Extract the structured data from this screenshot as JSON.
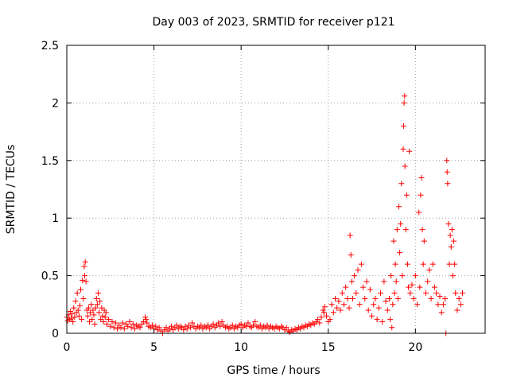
{
  "chart_data": {
    "type": "scatter",
    "title": "Day 003 of 2023, SRMTID for receiver p121",
    "xlabel": "GPS time / hours",
    "ylabel": "SRMTID / TECUs",
    "xlim": [
      0,
      24
    ],
    "ylim": [
      0,
      2.5
    ],
    "x_ticks": [
      0,
      5,
      10,
      15,
      20
    ],
    "y_ticks": [
      0,
      0.5,
      1,
      1.5,
      2,
      2.5
    ],
    "x_tick_labels": [
      "0",
      "5",
      "10",
      "15",
      "20"
    ],
    "y_tick_labels": [
      "0",
      "0.5",
      "1",
      "1.5",
      "2",
      "2.5"
    ],
    "grid": true,
    "marker": "+",
    "color": "#ff0000",
    "series": [
      {
        "name": "SRMTID",
        "points": [
          [
            0.0,
            0.14
          ],
          [
            0.05,
            0.11
          ],
          [
            0.1,
            0.16
          ],
          [
            0.15,
            0.12
          ],
          [
            0.2,
            0.19
          ],
          [
            0.25,
            0.13
          ],
          [
            0.3,
            0.17
          ],
          [
            0.35,
            0.1
          ],
          [
            0.4,
            0.22
          ],
          [
            0.45,
            0.14
          ],
          [
            0.5,
            0.28
          ],
          [
            0.55,
            0.18
          ],
          [
            0.6,
            0.35
          ],
          [
            0.65,
            0.2
          ],
          [
            0.7,
            0.15
          ],
          [
            0.75,
            0.24
          ],
          [
            0.8,
            0.38
          ],
          [
            0.85,
            0.12
          ],
          [
            0.9,
            0.46
          ],
          [
            0.95,
            0.3
          ],
          [
            1.0,
            0.58
          ],
          [
            1.03,
            0.5
          ],
          [
            1.06,
            0.62
          ],
          [
            1.1,
            0.45
          ],
          [
            1.15,
            0.2
          ],
          [
            1.2,
            0.15
          ],
          [
            1.25,
            0.22
          ],
          [
            1.3,
            0.1
          ],
          [
            1.35,
            0.18
          ],
          [
            1.4,
            0.25
          ],
          [
            1.45,
            0.12
          ],
          [
            1.5,
            0.2
          ],
          [
            1.55,
            0.16
          ],
          [
            1.6,
            0.08
          ],
          [
            1.65,
            0.22
          ],
          [
            1.7,
            0.3
          ],
          [
            1.75,
            0.25
          ],
          [
            1.8,
            0.35
          ],
          [
            1.85,
            0.18
          ],
          [
            1.9,
            0.28
          ],
          [
            1.95,
            0.12
          ],
          [
            2.0,
            0.22
          ],
          [
            2.05,
            0.15
          ],
          [
            2.1,
            0.1
          ],
          [
            2.15,
            0.2
          ],
          [
            2.2,
            0.14
          ],
          [
            2.25,
            0.18
          ],
          [
            2.3,
            0.08
          ],
          [
            2.4,
            0.12
          ],
          [
            2.5,
            0.06
          ],
          [
            2.6,
            0.1
          ],
          [
            2.7,
            0.05
          ],
          [
            2.8,
            0.09
          ],
          [
            2.9,
            0.04
          ],
          [
            3.0,
            0.07
          ],
          [
            3.1,
            0.05
          ],
          [
            3.2,
            0.09
          ],
          [
            3.3,
            0.04
          ],
          [
            3.4,
            0.08
          ],
          [
            3.5,
            0.06
          ],
          [
            3.6,
            0.1
          ],
          [
            3.7,
            0.05
          ],
          [
            3.8,
            0.08
          ],
          [
            3.9,
            0.04
          ],
          [
            4.0,
            0.07
          ],
          [
            4.1,
            0.06
          ],
          [
            4.2,
            0.05
          ],
          [
            4.3,
            0.08
          ],
          [
            4.4,
            0.1
          ],
          [
            4.5,
            0.14
          ],
          [
            4.55,
            0.12
          ],
          [
            4.6,
            0.09
          ],
          [
            4.7,
            0.06
          ],
          [
            4.8,
            0.05
          ],
          [
            4.9,
            0.07
          ],
          [
            5.0,
            0.04
          ],
          [
            5.1,
            0.06
          ],
          [
            5.2,
            0.03
          ],
          [
            5.3,
            0.05
          ],
          [
            5.4,
            0.02
          ],
          [
            5.5,
            0.0
          ],
          [
            5.6,
            0.03
          ],
          [
            5.7,
            0.05
          ],
          [
            5.8,
            0.02
          ],
          [
            5.9,
            0.04
          ],
          [
            6.0,
            0.06
          ],
          [
            6.1,
            0.03
          ],
          [
            6.2,
            0.05
          ],
          [
            6.3,
            0.07
          ],
          [
            6.4,
            0.04
          ],
          [
            6.5,
            0.06
          ],
          [
            6.6,
            0.05
          ],
          [
            6.7,
            0.03
          ],
          [
            6.8,
            0.06
          ],
          [
            6.9,
            0.04
          ],
          [
            7.0,
            0.07
          ],
          [
            7.1,
            0.05
          ],
          [
            7.2,
            0.09
          ],
          [
            7.3,
            0.06
          ],
          [
            7.4,
            0.04
          ],
          [
            7.5,
            0.06
          ],
          [
            7.6,
            0.05
          ],
          [
            7.7,
            0.07
          ],
          [
            7.8,
            0.04
          ],
          [
            7.9,
            0.06
          ],
          [
            8.0,
            0.05
          ],
          [
            8.1,
            0.07
          ],
          [
            8.2,
            0.04
          ],
          [
            8.3,
            0.06
          ],
          [
            8.4,
            0.08
          ],
          [
            8.5,
            0.05
          ],
          [
            8.6,
            0.07
          ],
          [
            8.7,
            0.09
          ],
          [
            8.8,
            0.06
          ],
          [
            8.9,
            0.1
          ],
          [
            9.0,
            0.07
          ],
          [
            9.1,
            0.05
          ],
          [
            9.2,
            0.06
          ],
          [
            9.3,
            0.04
          ],
          [
            9.4,
            0.05
          ],
          [
            9.5,
            0.07
          ],
          [
            9.6,
            0.04
          ],
          [
            9.7,
            0.06
          ],
          [
            9.8,
            0.05
          ],
          [
            9.9,
            0.07
          ],
          [
            10.0,
            0.08
          ],
          [
            10.1,
            0.05
          ],
          [
            10.2,
            0.07
          ],
          [
            10.3,
            0.06
          ],
          [
            10.4,
            0.09
          ],
          [
            10.5,
            0.06
          ],
          [
            10.6,
            0.05
          ],
          [
            10.7,
            0.07
          ],
          [
            10.8,
            0.1
          ],
          [
            10.9,
            0.06
          ],
          [
            11.0,
            0.05
          ],
          [
            11.1,
            0.07
          ],
          [
            11.2,
            0.04
          ],
          [
            11.3,
            0.06
          ],
          [
            11.4,
            0.05
          ],
          [
            11.5,
            0.07
          ],
          [
            11.6,
            0.04
          ],
          [
            11.7,
            0.06
          ],
          [
            11.8,
            0.05
          ],
          [
            11.9,
            0.04
          ],
          [
            12.0,
            0.06
          ],
          [
            12.1,
            0.05
          ],
          [
            12.2,
            0.04
          ],
          [
            12.3,
            0.06
          ],
          [
            12.4,
            0.05
          ],
          [
            12.5,
            0.03
          ],
          [
            12.6,
            0.05
          ],
          [
            12.7,
            0.02
          ],
          [
            12.8,
            0.01
          ],
          [
            12.9,
            0.03
          ],
          [
            13.0,
            0.02
          ],
          [
            13.1,
            0.04
          ],
          [
            13.2,
            0.03
          ],
          [
            13.3,
            0.05
          ],
          [
            13.4,
            0.04
          ],
          [
            13.5,
            0.06
          ],
          [
            13.6,
            0.05
          ],
          [
            13.7,
            0.07
          ],
          [
            13.8,
            0.06
          ],
          [
            13.9,
            0.08
          ],
          [
            14.0,
            0.07
          ],
          [
            14.1,
            0.09
          ],
          [
            14.2,
            0.08
          ],
          [
            14.3,
            0.1
          ],
          [
            14.4,
            0.12
          ],
          [
            14.5,
            0.09
          ],
          [
            14.6,
            0.14
          ],
          [
            14.7,
            0.2
          ],
          [
            14.75,
            0.18
          ],
          [
            14.8,
            0.23
          ],
          [
            14.9,
            0.15
          ],
          [
            15.0,
            0.1
          ],
          [
            15.1,
            0.12
          ],
          [
            15.2,
            0.25
          ],
          [
            15.3,
            0.18
          ],
          [
            15.4,
            0.3
          ],
          [
            15.5,
            0.22
          ],
          [
            15.6,
            0.28
          ],
          [
            15.7,
            0.2
          ],
          [
            15.8,
            0.35
          ],
          [
            15.9,
            0.25
          ],
          [
            16.0,
            0.4
          ],
          [
            16.1,
            0.3
          ],
          [
            16.2,
            0.22
          ],
          [
            16.25,
            0.85
          ],
          [
            16.3,
            0.68
          ],
          [
            16.35,
            0.45
          ],
          [
            16.4,
            0.3
          ],
          [
            16.5,
            0.5
          ],
          [
            16.6,
            0.35
          ],
          [
            16.7,
            0.55
          ],
          [
            16.8,
            0.25
          ],
          [
            16.9,
            0.6
          ],
          [
            17.0,
            0.4
          ],
          [
            17.1,
            0.3
          ],
          [
            17.2,
            0.45
          ],
          [
            17.3,
            0.2
          ],
          [
            17.4,
            0.38
          ],
          [
            17.5,
            0.15
          ],
          [
            17.6,
            0.25
          ],
          [
            17.7,
            0.3
          ],
          [
            17.8,
            0.12
          ],
          [
            17.9,
            0.22
          ],
          [
            18.0,
            0.35
          ],
          [
            18.1,
            0.1
          ],
          [
            18.2,
            0.45
          ],
          [
            18.3,
            0.28
          ],
          [
            18.4,
            0.2
          ],
          [
            18.5,
            0.3
          ],
          [
            18.55,
            0.12
          ],
          [
            18.6,
            0.5
          ],
          [
            18.65,
            0.05
          ],
          [
            18.7,
            0.25
          ],
          [
            18.75,
            0.8
          ],
          [
            18.8,
            0.35
          ],
          [
            18.85,
            0.6
          ],
          [
            18.9,
            0.45
          ],
          [
            18.95,
            0.9
          ],
          [
            19.0,
            0.3
          ],
          [
            19.05,
            1.1
          ],
          [
            19.1,
            0.7
          ],
          [
            19.15,
            0.95
          ],
          [
            19.2,
            1.3
          ],
          [
            19.25,
            0.5
          ],
          [
            19.3,
            1.6
          ],
          [
            19.32,
            1.8
          ],
          [
            19.35,
            2.0
          ],
          [
            19.38,
            2.06
          ],
          [
            19.4,
            1.45
          ],
          [
            19.45,
            0.9
          ],
          [
            19.5,
            1.2
          ],
          [
            19.55,
            0.6
          ],
          [
            19.6,
            0.4
          ],
          [
            19.65,
            1.58
          ],
          [
            19.7,
            0.35
          ],
          [
            19.8,
            0.42
          ],
          [
            19.9,
            0.3
          ],
          [
            20.0,
            0.5
          ],
          [
            20.1,
            0.25
          ],
          [
            20.2,
            1.05
          ],
          [
            20.25,
            0.4
          ],
          [
            20.3,
            1.2
          ],
          [
            20.35,
            1.35
          ],
          [
            20.4,
            0.9
          ],
          [
            20.45,
            0.6
          ],
          [
            20.5,
            0.8
          ],
          [
            20.6,
            0.35
          ],
          [
            20.7,
            0.45
          ],
          [
            20.8,
            0.55
          ],
          [
            20.9,
            0.3
          ],
          [
            21.0,
            0.6
          ],
          [
            21.1,
            0.4
          ],
          [
            21.2,
            0.35
          ],
          [
            21.3,
            0.25
          ],
          [
            21.4,
            0.32
          ],
          [
            21.5,
            0.18
          ],
          [
            21.6,
            0.25
          ],
          [
            21.7,
            0.3
          ],
          [
            21.75,
            0.0
          ],
          [
            21.8,
            1.5
          ],
          [
            21.82,
            1.4
          ],
          [
            21.85,
            1.3
          ],
          [
            21.9,
            0.95
          ],
          [
            21.95,
            0.6
          ],
          [
            22.0,
            0.85
          ],
          [
            22.05,
            0.75
          ],
          [
            22.1,
            0.9
          ],
          [
            22.15,
            0.5
          ],
          [
            22.2,
            0.8
          ],
          [
            22.25,
            0.6
          ],
          [
            22.3,
            0.35
          ],
          [
            22.4,
            0.2
          ],
          [
            22.5,
            0.3
          ],
          [
            22.6,
            0.25
          ],
          [
            22.7,
            0.35
          ]
        ]
      }
    ]
  }
}
